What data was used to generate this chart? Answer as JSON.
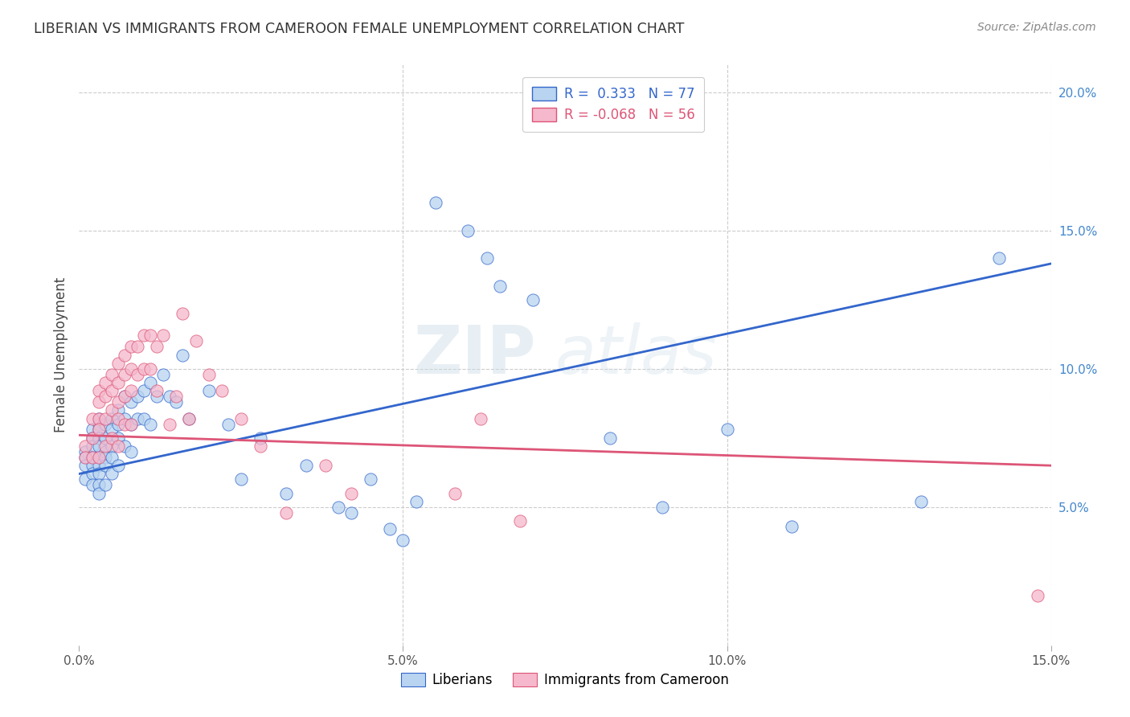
{
  "title": "LIBERIAN VS IMMIGRANTS FROM CAMEROON FEMALE UNEMPLOYMENT CORRELATION CHART",
  "source": "Source: ZipAtlas.com",
  "ylabel": "Female Unemployment",
  "xlim": [
    0,
    0.15
  ],
  "ylim": [
    0,
    0.21
  ],
  "liberian_color": "#b8d4f0",
  "cameroon_color": "#f5b8cc",
  "line_blue": "#3366cc",
  "line_pink": "#dd5577",
  "watermark": "ZIPAtlas",
  "blue_line_start": 0.062,
  "blue_line_end": 0.138,
  "pink_line_start": 0.076,
  "pink_line_end": 0.065,
  "liberian_x": [
    0.001,
    0.001,
    0.001,
    0.001,
    0.002,
    0.002,
    0.002,
    0.002,
    0.002,
    0.002,
    0.002,
    0.003,
    0.003,
    0.003,
    0.003,
    0.003,
    0.003,
    0.003,
    0.003,
    0.003,
    0.003,
    0.004,
    0.004,
    0.004,
    0.004,
    0.004,
    0.004,
    0.005,
    0.005,
    0.005,
    0.005,
    0.005,
    0.006,
    0.006,
    0.006,
    0.006,
    0.007,
    0.007,
    0.007,
    0.008,
    0.008,
    0.008,
    0.009,
    0.009,
    0.01,
    0.01,
    0.011,
    0.011,
    0.012,
    0.013,
    0.014,
    0.015,
    0.016,
    0.017,
    0.02,
    0.023,
    0.025,
    0.028,
    0.032,
    0.035,
    0.04,
    0.042,
    0.045,
    0.048,
    0.05,
    0.052,
    0.055,
    0.06,
    0.063,
    0.065,
    0.07,
    0.082,
    0.09,
    0.1,
    0.11,
    0.13,
    0.142
  ],
  "liberian_y": [
    0.07,
    0.068,
    0.065,
    0.06,
    0.078,
    0.075,
    0.072,
    0.068,
    0.065,
    0.062,
    0.058,
    0.082,
    0.08,
    0.078,
    0.075,
    0.072,
    0.068,
    0.065,
    0.062,
    0.058,
    0.055,
    0.08,
    0.075,
    0.07,
    0.068,
    0.065,
    0.058,
    0.082,
    0.078,
    0.072,
    0.068,
    0.062,
    0.085,
    0.08,
    0.075,
    0.065,
    0.09,
    0.082,
    0.072,
    0.088,
    0.08,
    0.07,
    0.09,
    0.082,
    0.092,
    0.082,
    0.095,
    0.08,
    0.09,
    0.098,
    0.09,
    0.088,
    0.105,
    0.082,
    0.092,
    0.08,
    0.06,
    0.075,
    0.055,
    0.065,
    0.05,
    0.048,
    0.06,
    0.042,
    0.038,
    0.052,
    0.16,
    0.15,
    0.14,
    0.13,
    0.125,
    0.075,
    0.05,
    0.078,
    0.043,
    0.052,
    0.14
  ],
  "cameroon_x": [
    0.001,
    0.001,
    0.002,
    0.002,
    0.002,
    0.003,
    0.003,
    0.003,
    0.003,
    0.003,
    0.004,
    0.004,
    0.004,
    0.004,
    0.005,
    0.005,
    0.005,
    0.005,
    0.006,
    0.006,
    0.006,
    0.006,
    0.006,
    0.007,
    0.007,
    0.007,
    0.007,
    0.008,
    0.008,
    0.008,
    0.008,
    0.009,
    0.009,
    0.01,
    0.01,
    0.011,
    0.011,
    0.012,
    0.012,
    0.013,
    0.014,
    0.015,
    0.016,
    0.017,
    0.018,
    0.02,
    0.022,
    0.025,
    0.028,
    0.032,
    0.038,
    0.042,
    0.058,
    0.062,
    0.068,
    0.148
  ],
  "cameroon_y": [
    0.072,
    0.068,
    0.082,
    0.075,
    0.068,
    0.092,
    0.088,
    0.082,
    0.078,
    0.068,
    0.095,
    0.09,
    0.082,
    0.072,
    0.098,
    0.092,
    0.085,
    0.075,
    0.102,
    0.095,
    0.088,
    0.082,
    0.072,
    0.105,
    0.098,
    0.09,
    0.08,
    0.108,
    0.1,
    0.092,
    0.08,
    0.108,
    0.098,
    0.112,
    0.1,
    0.112,
    0.1,
    0.108,
    0.092,
    0.112,
    0.08,
    0.09,
    0.12,
    0.082,
    0.11,
    0.098,
    0.092,
    0.082,
    0.072,
    0.048,
    0.065,
    0.055,
    0.055,
    0.082,
    0.045,
    0.018
  ]
}
